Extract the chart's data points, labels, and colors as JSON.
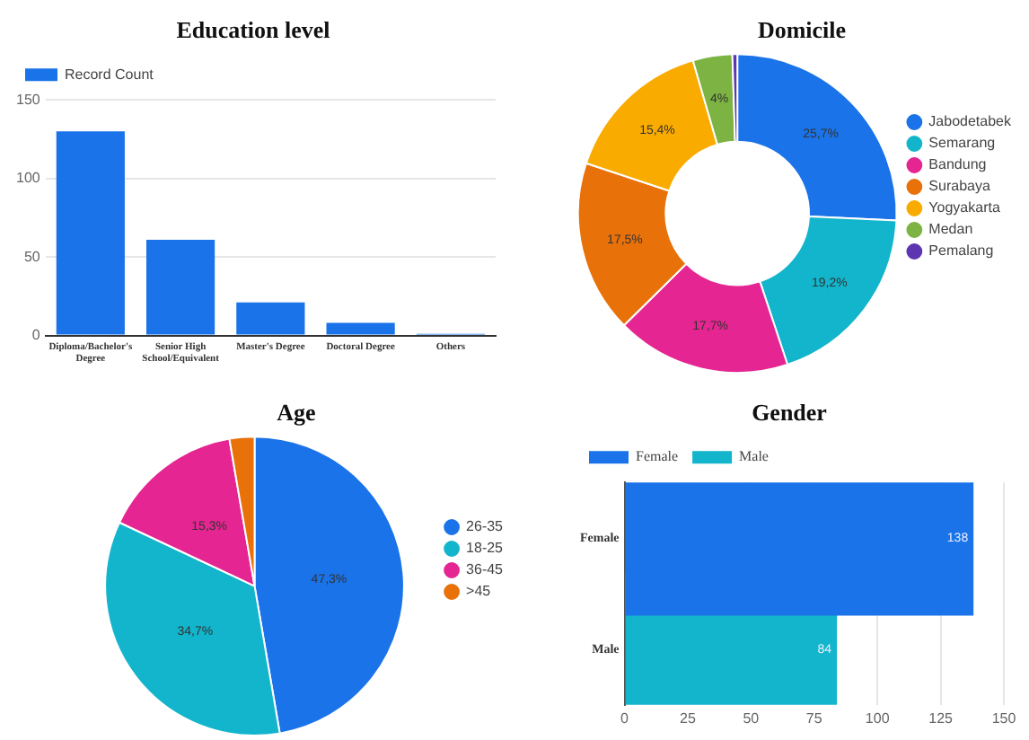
{
  "chart_data": [
    {
      "type": "bar",
      "title": "Education level",
      "categories": [
        "Diploma/Bachelor's Degree",
        "Senior High School/Equivalent",
        "Master's Degree",
        "Doctoral Degree",
        "Others"
      ],
      "series": [
        {
          "name": "Record Count",
          "color": "#1a73e8",
          "values": [
            130,
            61,
            21,
            8,
            1
          ]
        }
      ],
      "ylim": [
        0,
        150
      ],
      "yticks": [
        0,
        50,
        100,
        150
      ],
      "grid": "y",
      "legend": "top left"
    },
    {
      "type": "donut",
      "title": "Domicile",
      "categories": [
        "Jabodetabek",
        "Semarang",
        "Bandung",
        "Surabaya",
        "Yogyakarta",
        "Medan",
        "Pemalang"
      ],
      "values": [
        25.7,
        19.2,
        17.7,
        17.5,
        15.4,
        4,
        0.5
      ],
      "value_labels": [
        "25,7%",
        "19,2%",
        "17,7%",
        "17,5%",
        "15,4%",
        "4%",
        null
      ],
      "colors": [
        "#1a73e8",
        "#12b5cb",
        "#e52592",
        "#e8710a",
        "#f9ab00",
        "#7cb342",
        "#5e35b1"
      ],
      "legend": "right"
    },
    {
      "type": "pie",
      "title": "Age",
      "categories": [
        "26-35",
        "18-25",
        "36-45",
        ">45"
      ],
      "values": [
        47.3,
        34.7,
        15.3,
        2.7
      ],
      "value_labels": [
        "47,3%",
        "34,7%",
        "15,3%",
        null
      ],
      "colors": [
        "#1a73e8",
        "#12b5cb",
        "#e52592",
        "#e8710a"
      ],
      "legend": "right"
    },
    {
      "type": "bar",
      "title": "Gender",
      "orientation": "horizontal",
      "stacked": true,
      "categories": [
        "Female",
        "Male"
      ],
      "series": [
        {
          "name": "Female",
          "color": "#1a73e8",
          "values": [
            138,
            null
          ]
        },
        {
          "name": "Male",
          "color": "#12b5cb",
          "values": [
            null,
            84
          ]
        }
      ],
      "xlim": [
        0,
        150
      ],
      "xticks": [
        0,
        25,
        50,
        75,
        100,
        125,
        150
      ],
      "grid": "x",
      "data_labels": true,
      "legend": "top left"
    }
  ]
}
